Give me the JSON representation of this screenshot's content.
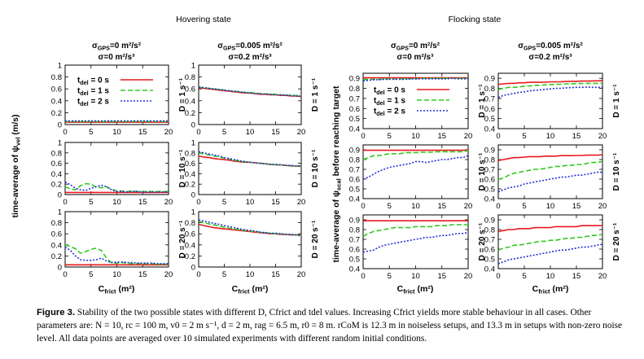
{
  "figure": {
    "state_titles": [
      "Hovering state",
      "Flocking state"
    ],
    "noise_headers": [
      {
        "gps": "σ",
        "gps_sub": "GPS",
        "gps_val": "=0 m²/s²",
        "acc": "σ=0 m²/s³"
      },
      {
        "gps": "σ",
        "gps_sub": "GPS",
        "gps_val": "=0.005 m²/s²",
        "acc": "σ=0.2 m²/s³"
      }
    ],
    "d_labels": [
      "D = 1 s⁻¹",
      "D = 10 s⁻¹",
      "D = 20 s⁻¹"
    ],
    "ylabel_left": "time-average of ψvel (m/s)",
    "ylabel_left_main": "time-average of ψ",
    "ylabel_left_sub": "vel",
    "ylabel_left_tail": " (m/s)",
    "ylabel_right_main": "time-average of ψ",
    "ylabel_right_sub": "scal",
    "ylabel_right_tail": " before reaching target",
    "xlabel_main": "C",
    "xlabel_sub": "frict",
    "xlabel_tail": " (m²)"
  },
  "legend": [
    {
      "t": "t",
      "sub": "del",
      "label": " = 0 s",
      "color": "#e8191f"
    },
    {
      "t": "t",
      "sub": "del",
      "label": " = 1 s",
      "color": "#2fcb1e"
    },
    {
      "t": "t",
      "sub": "del",
      "label": " = 2 s",
      "color": "#2230d8"
    }
  ],
  "chart_data": {
    "type": "line",
    "x": [
      0,
      1,
      2,
      3,
      4,
      5,
      6,
      7,
      8,
      9,
      10,
      11,
      12,
      13,
      14,
      15,
      16,
      17,
      18,
      19,
      20
    ],
    "xticks": [
      0,
      5,
      10,
      15,
      20
    ],
    "hover_ylim": [
      0,
      1
    ],
    "hover_yticks": [
      "0",
      "0.2",
      "0.4",
      "0.6",
      "0.8",
      "1"
    ],
    "flock_ylim": [
      0.4,
      0.95
    ],
    "flock_yticks": [
      "0.4",
      "0.5",
      "0.6",
      "0.7",
      "0.8",
      "0.9"
    ],
    "series_names": [
      "t_del = 0 s",
      "t_del = 1 s",
      "t_del = 2 s"
    ],
    "panels": [
      {
        "id": "hover-noiseless-D1",
        "ylim": [
          0,
          1
        ],
        "series": [
          [
            0.04,
            0.04,
            0.04,
            0.04,
            0.04,
            0.04,
            0.04,
            0.04,
            0.04,
            0.04,
            0.04,
            0.04,
            0.04,
            0.04,
            0.04,
            0.04,
            0.04,
            0.04,
            0.04,
            0.04,
            0.04
          ],
          [
            0.05,
            0.05,
            0.05,
            0.05,
            0.05,
            0.05,
            0.05,
            0.05,
            0.05,
            0.05,
            0.05,
            0.05,
            0.05,
            0.05,
            0.05,
            0.05,
            0.05,
            0.05,
            0.05,
            0.05,
            0.05
          ],
          [
            0.06,
            0.06,
            0.06,
            0.06,
            0.06,
            0.06,
            0.06,
            0.06,
            0.06,
            0.06,
            0.06,
            0.06,
            0.06,
            0.06,
            0.06,
            0.06,
            0.06,
            0.06,
            0.06,
            0.06,
            0.06
          ]
        ]
      },
      {
        "id": "hover-noisy-D1",
        "ylim": [
          0,
          1
        ],
        "series": [
          [
            0.62,
            0.61,
            0.6,
            0.59,
            0.58,
            0.57,
            0.56,
            0.55,
            0.54,
            0.53,
            0.53,
            0.52,
            0.51,
            0.51,
            0.5,
            0.5,
            0.49,
            0.49,
            0.48,
            0.48,
            0.47
          ],
          [
            0.63,
            0.62,
            0.61,
            0.6,
            0.59,
            0.58,
            0.57,
            0.56,
            0.55,
            0.54,
            0.54,
            0.53,
            0.52,
            0.52,
            0.51,
            0.51,
            0.5,
            0.5,
            0.49,
            0.49,
            0.48
          ],
          [
            0.63,
            0.62,
            0.61,
            0.6,
            0.59,
            0.58,
            0.57,
            0.56,
            0.55,
            0.54,
            0.53,
            0.52,
            0.52,
            0.51,
            0.51,
            0.5,
            0.5,
            0.49,
            0.49,
            0.48,
            0.48
          ]
        ]
      },
      {
        "id": "hover-noiseless-D10",
        "ylim": [
          0,
          1
        ],
        "series": [
          [
            0.04,
            0.04,
            0.04,
            0.04,
            0.04,
            0.04,
            0.04,
            0.04,
            0.04,
            0.04,
            0.04,
            0.04,
            0.04,
            0.04,
            0.04,
            0.04,
            0.04,
            0.04,
            0.04,
            0.04,
            0.04
          ],
          [
            0.15,
            0.11,
            0.09,
            0.17,
            0.21,
            0.2,
            0.14,
            0.13,
            0.15,
            0.1,
            0.07,
            0.07,
            0.06,
            0.07,
            0.06,
            0.06,
            0.06,
            0.06,
            0.06,
            0.06,
            0.06
          ],
          [
            0.24,
            0.19,
            0.12,
            0.09,
            0.08,
            0.12,
            0.15,
            0.18,
            0.15,
            0.09,
            0.06,
            0.06,
            0.05,
            0.06,
            0.06,
            0.05,
            0.05,
            0.05,
            0.05,
            0.05,
            0.05
          ]
        ]
      },
      {
        "id": "hover-noisy-D10",
        "ylim": [
          0,
          1
        ],
        "series": [
          [
            0.74,
            0.72,
            0.71,
            0.69,
            0.68,
            0.67,
            0.66,
            0.64,
            0.63,
            0.62,
            0.62,
            0.61,
            0.6,
            0.59,
            0.58,
            0.57,
            0.57,
            0.56,
            0.55,
            0.55,
            0.54
          ],
          [
            0.8,
            0.78,
            0.76,
            0.74,
            0.72,
            0.7,
            0.68,
            0.66,
            0.64,
            0.63,
            0.62,
            0.61,
            0.6,
            0.59,
            0.58,
            0.57,
            0.57,
            0.56,
            0.55,
            0.55,
            0.54
          ],
          [
            0.82,
            0.8,
            0.78,
            0.76,
            0.74,
            0.71,
            0.69,
            0.67,
            0.65,
            0.63,
            0.62,
            0.61,
            0.6,
            0.59,
            0.58,
            0.58,
            0.57,
            0.56,
            0.56,
            0.55,
            0.55
          ]
        ]
      },
      {
        "id": "hover-noiseless-D20",
        "ylim": [
          0,
          1
        ],
        "series": [
          [
            0.04,
            0.04,
            0.04,
            0.04,
            0.04,
            0.04,
            0.04,
            0.04,
            0.04,
            0.04,
            0.04,
            0.04,
            0.04,
            0.04,
            0.04,
            0.04,
            0.04,
            0.04,
            0.04,
            0.04,
            0.04
          ],
          [
            0.4,
            0.37,
            0.33,
            0.25,
            0.28,
            0.32,
            0.34,
            0.3,
            0.16,
            0.07,
            0.07,
            0.08,
            0.07,
            0.06,
            0.06,
            0.06,
            0.06,
            0.06,
            0.05,
            0.05,
            0.05
          ],
          [
            0.36,
            0.3,
            0.2,
            0.13,
            0.12,
            0.12,
            0.13,
            0.16,
            0.11,
            0.08,
            0.09,
            0.09,
            0.08,
            0.08,
            0.07,
            0.07,
            0.07,
            0.07,
            0.06,
            0.06,
            0.06
          ]
        ]
      },
      {
        "id": "hover-noisy-D20",
        "ylim": [
          0,
          1
        ],
        "series": [
          [
            0.77,
            0.75,
            0.73,
            0.71,
            0.7,
            0.69,
            0.68,
            0.67,
            0.66,
            0.65,
            0.64,
            0.63,
            0.62,
            0.61,
            0.6,
            0.6,
            0.59,
            0.59,
            0.58,
            0.58,
            0.58
          ],
          [
            0.82,
            0.8,
            0.78,
            0.76,
            0.74,
            0.72,
            0.7,
            0.69,
            0.67,
            0.66,
            0.65,
            0.64,
            0.63,
            0.62,
            0.61,
            0.6,
            0.6,
            0.59,
            0.59,
            0.58,
            0.58
          ],
          [
            0.85,
            0.83,
            0.81,
            0.79,
            0.77,
            0.75,
            0.73,
            0.71,
            0.69,
            0.67,
            0.66,
            0.65,
            0.63,
            0.62,
            0.61,
            0.61,
            0.6,
            0.59,
            0.59,
            0.58,
            0.56
          ]
        ]
      },
      {
        "id": "flock-noiseless-D1",
        "ylim": [
          0.4,
          0.95
        ],
        "series": [
          [
            0.905,
            0.905,
            0.905,
            0.905,
            0.905,
            0.905,
            0.905,
            0.905,
            0.905,
            0.905,
            0.905,
            0.905,
            0.905,
            0.905,
            0.905,
            0.905,
            0.905,
            0.905,
            0.905,
            0.905,
            0.905
          ],
          [
            0.885,
            0.89,
            0.89,
            0.89,
            0.895,
            0.895,
            0.895,
            0.895,
            0.895,
            0.895,
            0.895,
            0.9,
            0.9,
            0.9,
            0.9,
            0.9,
            0.9,
            0.9,
            0.9,
            0.9,
            0.9
          ],
          [
            0.875,
            0.88,
            0.885,
            0.885,
            0.89,
            0.89,
            0.89,
            0.89,
            0.89,
            0.895,
            0.895,
            0.895,
            0.895,
            0.895,
            0.895,
            0.895,
            0.895,
            0.9,
            0.895,
            0.895,
            0.895
          ]
        ]
      },
      {
        "id": "flock-noisy-D1",
        "ylim": [
          0.4,
          0.95
        ],
        "series": [
          [
            0.84,
            0.845,
            0.85,
            0.85,
            0.855,
            0.855,
            0.86,
            0.86,
            0.86,
            0.862,
            0.865,
            0.865,
            0.866,
            0.868,
            0.87,
            0.87,
            0.872,
            0.872,
            0.874,
            0.875,
            0.876
          ],
          [
            0.79,
            0.8,
            0.81,
            0.81,
            0.815,
            0.82,
            0.825,
            0.83,
            0.83,
            0.835,
            0.838,
            0.84,
            0.842,
            0.845,
            0.846,
            0.847,
            0.848,
            0.85,
            0.85,
            0.85,
            0.852
          ],
          [
            0.71,
            0.73,
            0.74,
            0.75,
            0.76,
            0.765,
            0.775,
            0.78,
            0.785,
            0.79,
            0.795,
            0.8,
            0.8,
            0.805,
            0.808,
            0.81,
            0.81,
            0.812,
            0.81,
            0.81,
            0.81
          ]
        ]
      },
      {
        "id": "flock-noiseless-D10",
        "ylim": [
          0.4,
          0.95
        ],
        "series": [
          [
            0.895,
            0.895,
            0.895,
            0.895,
            0.895,
            0.895,
            0.895,
            0.895,
            0.895,
            0.895,
            0.895,
            0.895,
            0.895,
            0.895,
            0.895,
            0.895,
            0.895,
            0.895,
            0.895,
            0.895,
            0.895
          ],
          [
            0.8,
            0.82,
            0.84,
            0.84,
            0.85,
            0.86,
            0.86,
            0.86,
            0.87,
            0.87,
            0.87,
            0.875,
            0.875,
            0.875,
            0.88,
            0.88,
            0.88,
            0.88,
            0.88,
            0.88,
            0.89
          ],
          [
            0.6,
            0.62,
            0.65,
            0.68,
            0.7,
            0.72,
            0.73,
            0.74,
            0.75,
            0.76,
            0.78,
            0.78,
            0.77,
            0.78,
            0.79,
            0.8,
            0.8,
            0.81,
            0.82,
            0.82,
            0.84
          ]
        ]
      },
      {
        "id": "flock-noisy-D10",
        "ylim": [
          0.4,
          0.95
        ],
        "series": [
          [
            0.79,
            0.8,
            0.81,
            0.82,
            0.82,
            0.825,
            0.83,
            0.83,
            0.83,
            0.835,
            0.835,
            0.835,
            0.84,
            0.84,
            0.84,
            0.842,
            0.842,
            0.845,
            0.845,
            0.845,
            0.85
          ],
          [
            0.6,
            0.61,
            0.64,
            0.66,
            0.67,
            0.68,
            0.69,
            0.7,
            0.7,
            0.71,
            0.72,
            0.73,
            0.73,
            0.74,
            0.74,
            0.75,
            0.75,
            0.76,
            0.77,
            0.77,
            0.78
          ],
          [
            0.47,
            0.49,
            0.51,
            0.52,
            0.53,
            0.55,
            0.56,
            0.57,
            0.58,
            0.59,
            0.6,
            0.61,
            0.62,
            0.62,
            0.63,
            0.64,
            0.64,
            0.65,
            0.66,
            0.67,
            0.67
          ]
        ]
      },
      {
        "id": "flock-noiseless-D20",
        "ylim": [
          0.4,
          0.95
        ],
        "series": [
          [
            0.89,
            0.89,
            0.89,
            0.89,
            0.89,
            0.89,
            0.89,
            0.89,
            0.89,
            0.89,
            0.89,
            0.89,
            0.89,
            0.89,
            0.89,
            0.89,
            0.89,
            0.89,
            0.89,
            0.89,
            0.89
          ],
          [
            0.73,
            0.76,
            0.78,
            0.79,
            0.8,
            0.81,
            0.82,
            0.82,
            0.82,
            0.82,
            0.83,
            0.83,
            0.83,
            0.83,
            0.84,
            0.84,
            0.84,
            0.85,
            0.85,
            0.85,
            0.85
          ],
          [
            0.57,
            0.58,
            0.59,
            0.62,
            0.64,
            0.65,
            0.66,
            0.67,
            0.68,
            0.69,
            0.7,
            0.71,
            0.72,
            0.72,
            0.73,
            0.74,
            0.74,
            0.75,
            0.76,
            0.76,
            0.77
          ]
        ]
      },
      {
        "id": "flock-noisy-D20",
        "ylim": [
          0.4,
          0.95
        ],
        "series": [
          [
            0.78,
            0.79,
            0.8,
            0.8,
            0.81,
            0.81,
            0.81,
            0.82,
            0.82,
            0.82,
            0.82,
            0.83,
            0.83,
            0.83,
            0.83,
            0.83,
            0.84,
            0.84,
            0.84,
            0.84,
            0.84
          ],
          [
            0.59,
            0.61,
            0.62,
            0.64,
            0.64,
            0.65,
            0.66,
            0.67,
            0.68,
            0.68,
            0.69,
            0.69,
            0.7,
            0.71,
            0.71,
            0.72,
            0.72,
            0.73,
            0.74,
            0.74,
            0.75
          ],
          [
            0.45,
            0.47,
            0.49,
            0.5,
            0.51,
            0.52,
            0.53,
            0.54,
            0.55,
            0.56,
            0.57,
            0.58,
            0.59,
            0.59,
            0.6,
            0.61,
            0.62,
            0.62,
            0.63,
            0.64,
            0.65
          ]
        ]
      }
    ]
  },
  "caption": {
    "label": "Figure 3.",
    "text": " Stability of the two possible states with different D, Cfrict and tdel values. Increasing Cfrict yields more stable behaviour in all cases. Other parameters are: N = 10, rc = 100 m, v0 = 2 m s⁻¹, d = 2 m, rag = 6.5 m, r0 = 8 m. rCoM is 12.3 m in noiseless setups, and 13.3 m in setups with non-zero noise level. All data points are averaged over 10 simulated experiments with different random initial conditions."
  }
}
